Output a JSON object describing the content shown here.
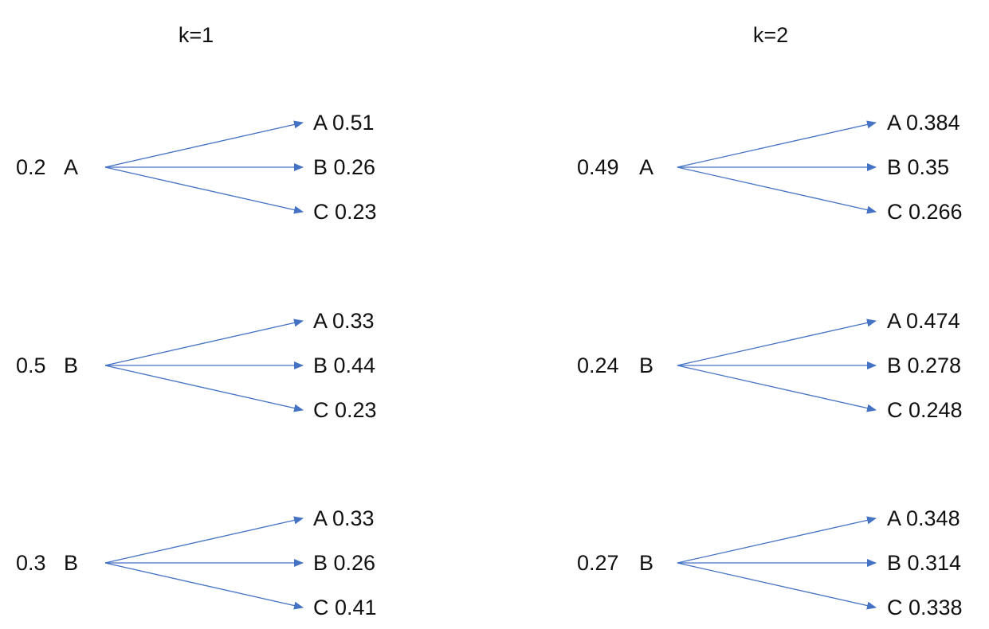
{
  "colors": {
    "arrow": "#4472C4",
    "text": "#111111",
    "background": "#ffffff"
  },
  "panels": [
    {
      "title": "k=1",
      "groups": [
        {
          "source_prob": "0.2",
          "source_state": "A",
          "targets": [
            {
              "label": "A 0.51"
            },
            {
              "label": "B 0.26"
            },
            {
              "label": "C 0.23"
            }
          ]
        },
        {
          "source_prob": "0.5",
          "source_state": "B",
          "targets": [
            {
              "label": "A 0.33"
            },
            {
              "label": "B 0.44"
            },
            {
              "label": "C 0.23"
            }
          ]
        },
        {
          "source_prob": "0.3",
          "source_state": "B",
          "targets": [
            {
              "label": "A 0.33"
            },
            {
              "label": "B 0.26"
            },
            {
              "label": "C 0.41"
            }
          ]
        }
      ]
    },
    {
      "title": "k=2",
      "groups": [
        {
          "source_prob": "0.49",
          "source_state": "A",
          "targets": [
            {
              "label": "A 0.384"
            },
            {
              "label": "B 0.35"
            },
            {
              "label": "C 0.266"
            }
          ]
        },
        {
          "source_prob": "0.24",
          "source_state": "B",
          "targets": [
            {
              "label": "A 0.474"
            },
            {
              "label": "B 0.278"
            },
            {
              "label": "C 0.248"
            }
          ]
        },
        {
          "source_prob": "0.27",
          "source_state": "B",
          "targets": [
            {
              "label": "A 0.348"
            },
            {
              "label": "B 0.314"
            },
            {
              "label": "C 0.338"
            }
          ]
        }
      ]
    }
  ]
}
